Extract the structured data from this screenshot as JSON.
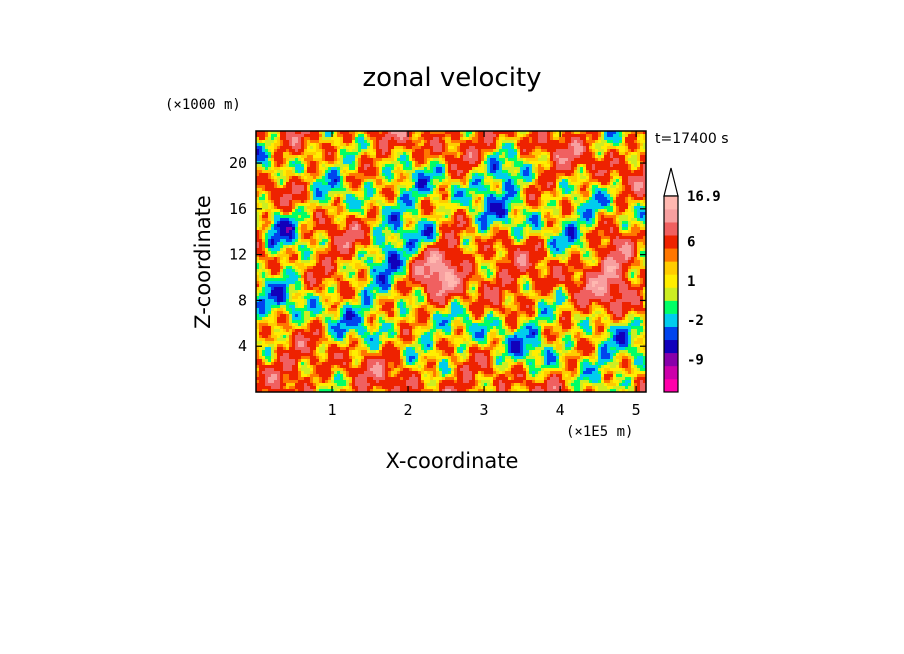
{
  "chart_data": {
    "type": "heatmap",
    "title": "zonal velocity",
    "xlabel": "X-coordinate",
    "ylabel": "Z-coordinate",
    "x_units_label": "(×1E5 m)",
    "y_units_label": "(×1000 m)",
    "time_label": "t=17400 s",
    "xlim": [
      0,
      5.13
    ],
    "ylim": [
      0,
      22.8
    ],
    "x_ticks": [
      1,
      2,
      3,
      4,
      5
    ],
    "x_tick_labels": [
      "1",
      "2",
      "3",
      "4",
      "5"
    ],
    "y_ticks": [
      4,
      8,
      12,
      16,
      20
    ],
    "y_tick_labels": [
      "4",
      "8",
      "12",
      "16",
      "20"
    ],
    "colorbar": {
      "levels": [
        -14,
        -11,
        -9,
        -6,
        -4,
        -2,
        -1,
        0,
        1,
        2,
        3,
        6,
        9,
        12,
        16.9
      ],
      "colors": [
        "#ff00aa",
        "#cc00aa",
        "#8800aa",
        "#1100bb",
        "#0044ee",
        "#00ccee",
        "#00ff66",
        "#ccee22",
        "#ffee00",
        "#ffcc00",
        "#ff7700",
        "#ee2200",
        "#f06060",
        "#f7a0a0",
        "#ffb8b0"
      ],
      "tick_labels": [
        "16.9",
        "6",
        "1",
        "-2",
        "-9"
      ],
      "tick_values": [
        16.9,
        6,
        1,
        -2,
        -9
      ],
      "extend": "max"
    },
    "field_description_values": {
      "min": -14,
      "max": 16.9
    }
  }
}
